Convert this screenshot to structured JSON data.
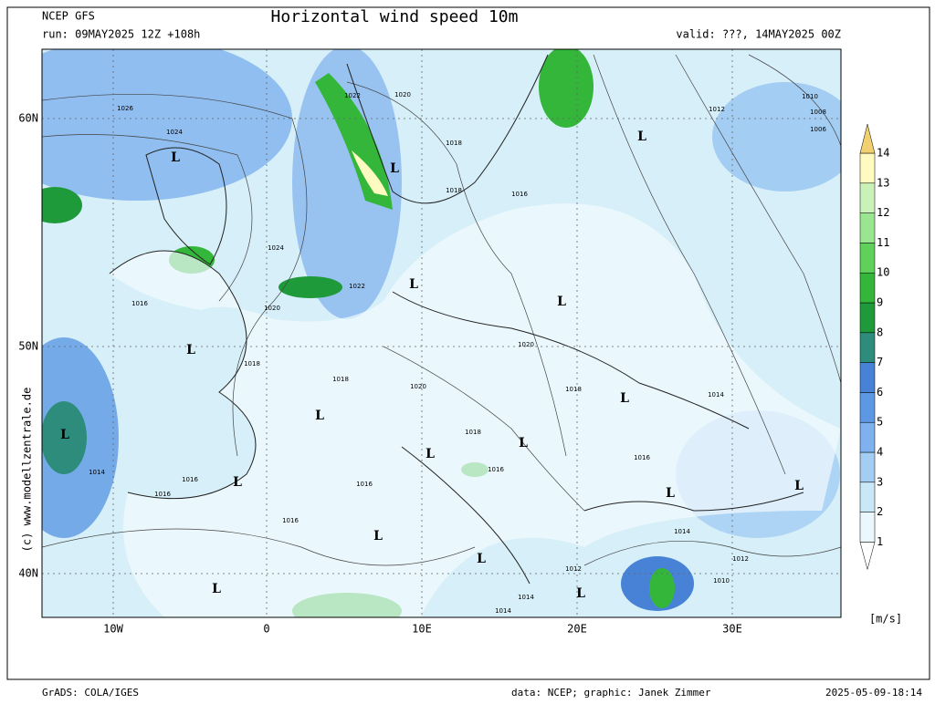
{
  "header": {
    "model": "NCEP GFS",
    "run": "run: 09MAY2025 12Z +108h",
    "title": "Horizontal wind speed 10m",
    "valid": "valid: ???, 14MAY2025 00Z"
  },
  "map": {
    "lat_labels": [
      "60N",
      "50N",
      "40N"
    ],
    "lon_labels": [
      "10W",
      "0",
      "10E",
      "20E",
      "30E"
    ],
    "lows": [
      "L",
      "L",
      "L",
      "L",
      "L",
      "L",
      "L",
      "L",
      "L",
      "L",
      "L",
      "L",
      "L",
      "L",
      "L",
      "L",
      "L",
      "L"
    ],
    "isobar_labels": [
      "1026",
      "1024",
      "1022",
      "1020",
      "1018",
      "1018",
      "1016",
      "1012",
      "1010",
      "1008",
      "1006",
      "1024",
      "1022",
      "1020",
      "1016",
      "1020",
      "1018",
      "1018",
      "1020",
      "1018",
      "1014",
      "1018",
      "1016",
      "1014",
      "1016",
      "1016",
      "1016",
      "1016",
      "1016",
      "1014",
      "1012",
      "1012",
      "1010",
      "1014",
      "1014"
    ],
    "copyright": "(c) www.modellzentrale.de"
  },
  "colorbar": {
    "ticks": [
      1,
      2,
      3,
      4,
      5,
      6,
      7,
      8,
      9,
      10,
      11,
      12,
      13,
      14
    ],
    "unit": "[m/s]",
    "colors": [
      "#eaf7fc",
      "#c8e8f7",
      "#a3cdf2",
      "#7eb1ee",
      "#5d98e4",
      "#4782d6",
      "#2e8c7c",
      "#1e9a3a",
      "#34b63a",
      "#5fd05a",
      "#9ae690",
      "#c8f2b8",
      "#fffbc0",
      "#f0d070"
    ]
  },
  "footer": {
    "software": "GrADS: COLA/IGES",
    "credit": "data: NCEP; graphic: Janek Zimmer",
    "timestamp": "2025-05-09-18:14"
  }
}
